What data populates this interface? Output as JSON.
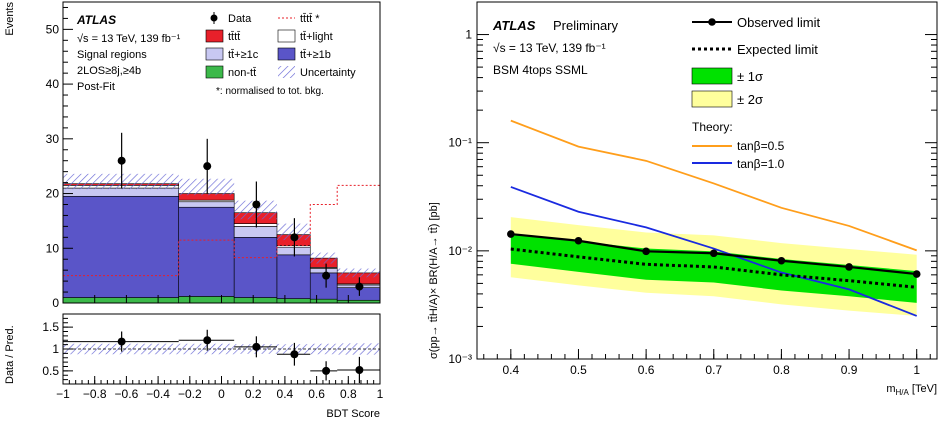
{
  "chart_data": [
    {
      "type": "bar",
      "title": "",
      "atlas_label": "ATLAS",
      "info_lines": [
        "√s = 13 TeV, 139 fb⁻¹",
        "Signal regions",
        "2LOS≥8j,≥4b",
        "Post-Fit"
      ],
      "xlabel": "BDT Score",
      "ylabel": "Events",
      "xlim": [
        -1,
        1
      ],
      "ylim": [
        0,
        55
      ],
      "x_ticks": [
        -1,
        -0.8,
        -0.6,
        -0.4,
        -0.2,
        0,
        0.2,
        0.4,
        0.6,
        0.8,
        1
      ],
      "x_tick_labels": [
        "−1",
        "−0.8",
        "−0.6",
        "−0.4",
        "−0.2",
        "0",
        "0.2",
        "0.4",
        "0.6",
        "0.8",
        "1"
      ],
      "y_ticks": [
        0,
        10,
        20,
        30,
        40,
        50
      ],
      "bin_edges": [
        -1,
        -0.27,
        0.08,
        0.35,
        0.56,
        0.73,
        1
      ],
      "stack": [
        {
          "name": "non-tt̄",
          "color": "#3cb94a",
          "values": [
            1.0,
            1.2,
            1.0,
            0.8,
            0.7,
            0.5
          ]
        },
        {
          "name": "tt̄+≥1b",
          "color": "#5a55c8",
          "values": [
            18.5,
            16.3,
            11.0,
            8.0,
            4.8,
            2.3
          ]
        },
        {
          "name": "tt̄+≥1c",
          "color": "#c8c8f2",
          "values": [
            1.5,
            1.0,
            2.0,
            1.4,
            0.8,
            0.5
          ]
        },
        {
          "name": "tt̄+light",
          "color": "#ffffff",
          "values": [
            0.5,
            0.3,
            0.5,
            0.3,
            0.2,
            0.2
          ]
        },
        {
          "name": "tt̄tt̄",
          "color": "#e8202a",
          "values": [
            0.3,
            1.2,
            2.0,
            2.0,
            1.7,
            2.0
          ]
        }
      ],
      "uncertainty_band": [
        [
          20.8,
          23.6
        ],
        [
          19.7,
          22.7
        ],
        [
          15.3,
          18.7
        ],
        [
          11.5,
          14.5
        ],
        [
          7.2,
          9.2
        ],
        [
          4.7,
          6.3
        ]
      ],
      "tttt_normalised": [
        5.0,
        11.5,
        8.3,
        10.5,
        18.0,
        21.5
      ],
      "data": {
        "x": [
          -0.63,
          -0.09,
          0.22,
          0.46,
          0.66,
          0.87
        ],
        "y": [
          26,
          25,
          18,
          12,
          5,
          3
        ],
        "err": [
          5.1,
          5.0,
          4.2,
          3.5,
          2.2,
          1.7
        ]
      },
      "legend": [
        "Data",
        "tt̄tt̄ *",
        "tt̄tt̄",
        "tt̄+light",
        "tt̄+≥1c",
        "tt̄+≥1b",
        "non-tt̄",
        "Uncertainty"
      ],
      "legend_note": "*: normalised to tot. bkg."
    },
    {
      "type": "scatter",
      "title": "",
      "ylabel": "Data / Pred.",
      "xlabel": "BDT Score",
      "xlim": [
        -1,
        1
      ],
      "ylim": [
        0.2,
        1.8
      ],
      "y_ticks": [
        0.5,
        1,
        1.5
      ],
      "y_tick_labels": [
        "0.5",
        "1",
        "1.5"
      ],
      "data": {
        "x": [
          -0.63,
          -0.09,
          0.22,
          0.46,
          0.66,
          0.87
        ],
        "y": [
          1.17,
          1.2,
          1.05,
          0.88,
          0.5,
          0.52
        ],
        "err": [
          0.23,
          0.24,
          0.24,
          0.26,
          0.22,
          0.3
        ]
      },
      "uncertainty_band": [
        [
          0.88,
          1.12
        ],
        [
          0.88,
          1.12
        ],
        [
          0.89,
          1.11
        ],
        [
          0.89,
          1.11
        ],
        [
          0.88,
          1.12
        ],
        [
          0.87,
          1.13
        ]
      ]
    },
    {
      "type": "line",
      "title": "",
      "atlas_label": "ATLAS",
      "preliminary": "Preliminary",
      "info_lines": [
        "√s = 13 TeV, 139 fb⁻¹",
        "BSM 4tops SSML"
      ],
      "ylabel": "σ(pp→ tt̄H/A)× BR(H/A→ tt̄) [pb]",
      "xlabel": "m_H/A [TeV]",
      "xlabel_main": "m",
      "xlabel_sub": "H/A",
      "xlabel_unit": " [TeV]",
      "y_scale": "log",
      "xlim": [
        0.35,
        1.03
      ],
      "ylim": [
        0.001,
        2
      ],
      "x_ticks": [
        0.4,
        0.5,
        0.6,
        0.7,
        0.8,
        0.9,
        1
      ],
      "x_tick_labels": [
        "0.4",
        "0.5",
        "0.6",
        "0.7",
        "0.8",
        "0.9",
        "1"
      ],
      "y_tick_labels": {
        "1": "1",
        "0.1": "10⁻¹",
        "0.01": "10⁻²",
        "0.001": "10⁻³"
      },
      "x": [
        0.4,
        0.5,
        0.6,
        0.7,
        0.8,
        0.9,
        1.0
      ],
      "series": [
        {
          "name": "Observed limit",
          "values": [
            0.0143,
            0.0124,
            0.0099,
            0.0095,
            0.0081,
            0.0071,
            0.0061
          ],
          "color": "#000000"
        },
        {
          "name": "Expected limit",
          "values": [
            0.0104,
            0.0088,
            0.0075,
            0.0071,
            0.006,
            0.0053,
            0.0046
          ],
          "color": "#000000"
        },
        {
          "name": "tanβ=0.5",
          "values": [
            0.16,
            0.092,
            0.068,
            0.042,
            0.025,
            0.017,
            0.0101
          ],
          "color": "#ff9e1b"
        },
        {
          "name": "tanβ=1.0",
          "values": [
            0.039,
            0.023,
            0.0165,
            0.0105,
            0.0063,
            0.0044,
            0.0025
          ],
          "color": "#1a2ae0"
        }
      ],
      "band_1sigma": {
        "name": "± 1σ",
        "lower": [
          0.0076,
          0.0064,
          0.0054,
          0.0051,
          0.0043,
          0.0038,
          0.0033
        ],
        "upper": [
          0.0145,
          0.0123,
          0.0105,
          0.0099,
          0.0084,
          0.0074,
          0.0065
        ],
        "color": "#00e200"
      },
      "band_2sigma": {
        "name": "± 2σ",
        "lower": [
          0.0057,
          0.0048,
          0.0041,
          0.0038,
          0.0032,
          0.0028,
          0.0025
        ],
        "upper": [
          0.0205,
          0.0173,
          0.0148,
          0.0139,
          0.0118,
          0.0104,
          0.0092
        ],
        "color": "#ffff9d"
      },
      "legend_theory_title": "Theory:"
    }
  ]
}
